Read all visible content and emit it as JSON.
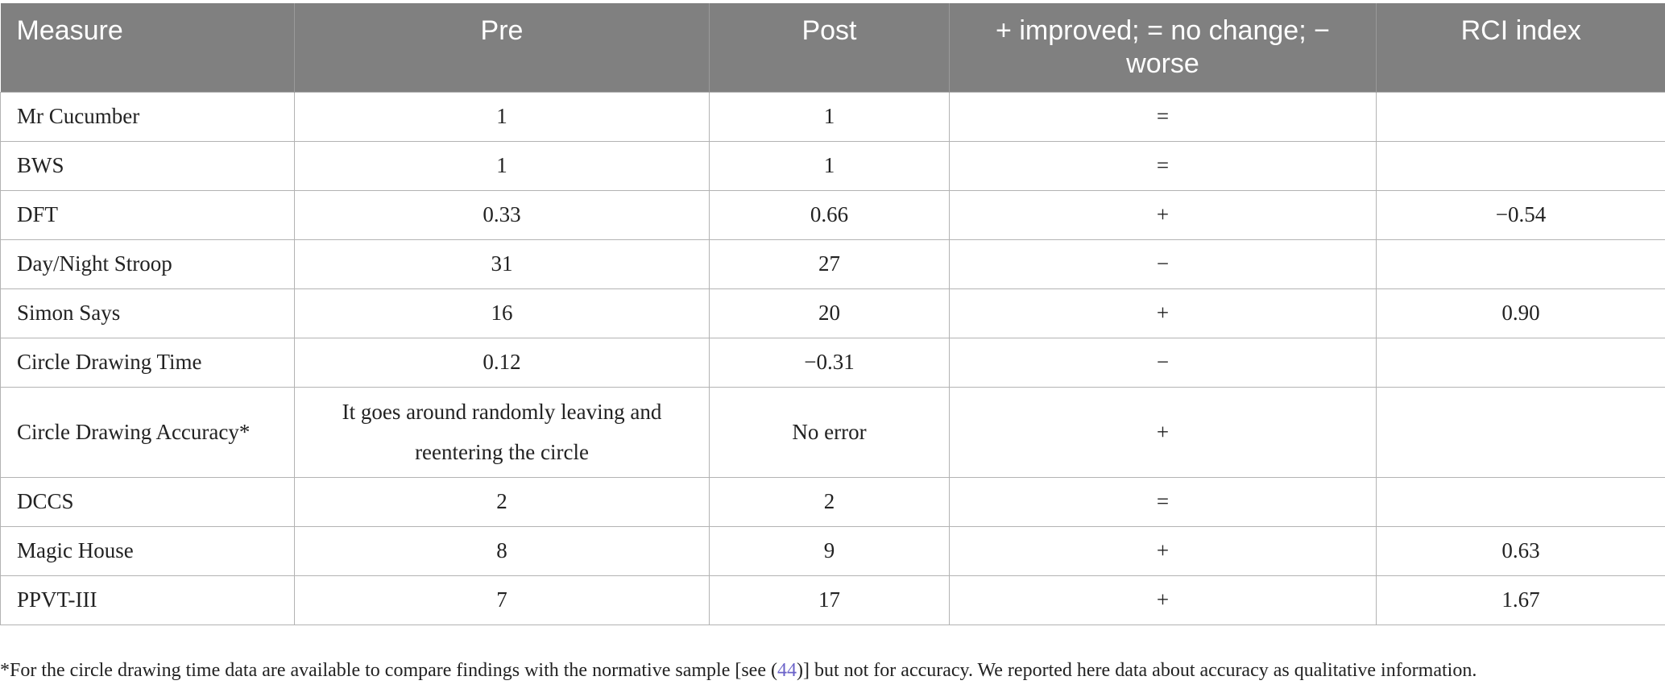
{
  "table": {
    "headers": [
      "Measure",
      "Pre",
      "Post",
      "+ improved; = no change; − worse",
      "RCI index"
    ],
    "rows": [
      {
        "measure": "Mr Cucumber",
        "pre": "1",
        "post": "1",
        "change": "=",
        "rci": ""
      },
      {
        "measure": "BWS",
        "pre": "1",
        "post": "1",
        "change": "=",
        "rci": ""
      },
      {
        "measure": "DFT",
        "pre": "0.33",
        "post": "0.66",
        "change": "+",
        "rci": "−0.54"
      },
      {
        "measure": "Day/Night Stroop",
        "pre": "31",
        "post": "27",
        "change": "−",
        "rci": ""
      },
      {
        "measure": "Simon Says",
        "pre": "16",
        "post": "20",
        "change": "+",
        "rci": "0.90"
      },
      {
        "measure": "Circle Drawing Time",
        "pre": "0.12",
        "post": "−0.31",
        "change": "−",
        "rci": ""
      },
      {
        "measure": "Circle Drawing Accuracy*",
        "pre": "It goes around randomly leaving and reentering the circle",
        "post": "No error",
        "change": "+",
        "rci": ""
      },
      {
        "measure": "DCCS",
        "pre": "2",
        "post": "2",
        "change": "=",
        "rci": ""
      },
      {
        "measure": "Magic House",
        "pre": "8",
        "post": "9",
        "change": "+",
        "rci": "0.63"
      },
      {
        "measure": "PPVT-III",
        "pre": "7",
        "post": "17",
        "change": "+",
        "rci": "1.67"
      }
    ]
  },
  "footnote": {
    "before": "*For the circle drawing time data are available to compare findings with the normative sample [see (",
    "ref": "44",
    "after": ")] but not for accuracy. We reported here data about accuracy as qualitative information."
  }
}
